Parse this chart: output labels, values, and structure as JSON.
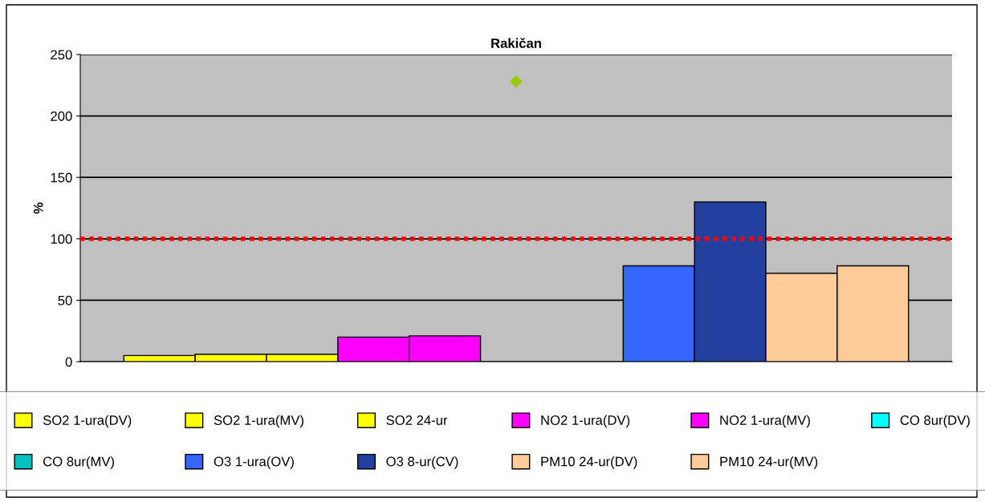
{
  "chart_data": {
    "type": "bar",
    "title": "Rakičan",
    "ylabel": "%",
    "categories": [
      null
    ],
    "series": [
      {
        "name": "SO2 1-ura(DV)",
        "color": "#ffff00",
        "values": [
          5
        ]
      },
      {
        "name": "SO2 1-ura(MV)",
        "color": "#ffff00",
        "values": [
          6
        ]
      },
      {
        "name": "SO2 24-ur",
        "color": "#ffff00",
        "values": [
          6
        ]
      },
      {
        "name": "NO2 1-ura(DV)",
        "color": "#ff00ff",
        "values": [
          20
        ]
      },
      {
        "name": "NO2 1-ura(MV)",
        "color": "#ff00ff",
        "values": [
          21
        ]
      },
      {
        "name": "CO 8ur(DV)",
        "color": "#00ffff",
        "values": [
          null
        ]
      },
      {
        "name": "CO 8ur(MV)",
        "color": "#00c0c0",
        "values": [
          null
        ]
      },
      {
        "name": "O3 1-ura(OV)",
        "color": "#3366ff",
        "values": [
          78
        ]
      },
      {
        "name": "O3 8-ur(CV)",
        "color": "#23409f",
        "values": [
          130
        ]
      },
      {
        "name": "PM10 24-ur(DV)",
        "color": "#ffcc99",
        "values": [
          72
        ]
      },
      {
        "name": "PM10 24-ur(MV)",
        "color": "#ffcc99",
        "values": [
          78
        ]
      },
      {
        "type": "scatter",
        "color": "#99cc00",
        "marker": "diamond",
        "values": [
          228
        ]
      }
    ],
    "ylim": [
      0,
      250
    ],
    "yticks": [
      0,
      50,
      100,
      150,
      200,
      250
    ],
    "grid": "y",
    "legend": "bottom",
    "tick_labels": "y",
    "ref_lines": [
      {
        "axis": "y",
        "value": 100,
        "color": "#ff0000",
        "line_style": "dotted"
      }
    ]
  }
}
